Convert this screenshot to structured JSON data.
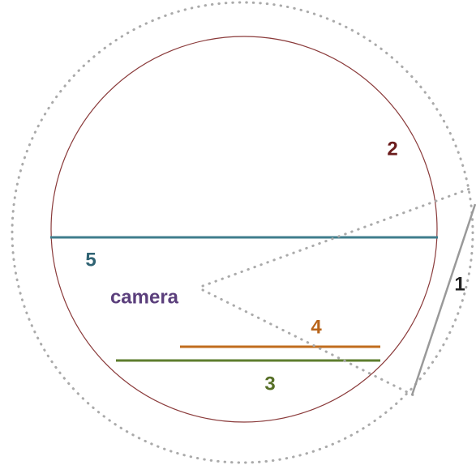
{
  "labels": {
    "one": "1",
    "two": "2",
    "three": "3",
    "four": "4",
    "five": "5",
    "camera": "camera"
  }
}
